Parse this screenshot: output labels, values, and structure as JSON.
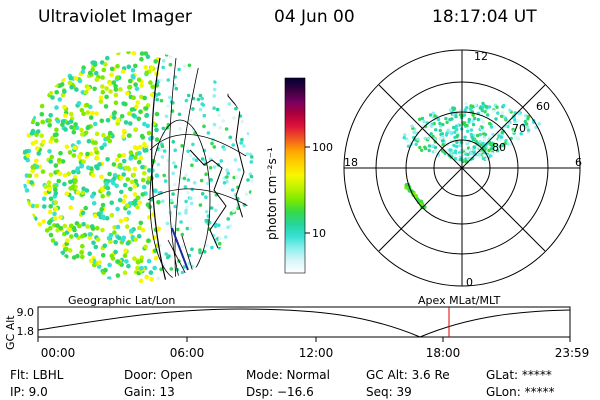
{
  "header": {
    "title": "Ultraviolet Imager",
    "date": "04 Jun 00",
    "time": "18:17:04 UT"
  },
  "colorbar": {
    "unit": "photon cm⁻²s⁻¹",
    "ticks": [
      "100",
      "10"
    ],
    "colors": [
      "#000033",
      "#3a0040",
      "#7a0060",
      "#b0003a",
      "#e0143a",
      "#f05a20",
      "#ffa500",
      "#ffd200",
      "#f7f700",
      "#bff300",
      "#7bea00",
      "#35d94a",
      "#26d59a",
      "#38e0d4",
      "#8ff0ef",
      "#d8f6f8",
      "#ffffff"
    ]
  },
  "polar_plot": {
    "mlt_labels": [
      "12",
      "18",
      "6",
      "0"
    ],
    "lat_labels": [
      "60",
      "70",
      "80"
    ]
  },
  "timeline": {
    "y_axis_label": "GC Alt",
    "y_ticks": [
      "9.0",
      "1.8"
    ],
    "left_title": "Geographic Lat/Lon",
    "right_title": "Apex MLat/MLT",
    "x_ticks": [
      "00:00",
      "06:00",
      "12:00",
      "18:00",
      "23:59"
    ],
    "current_marker_color": "#e00000"
  },
  "status": {
    "filter": "Flt: LBHL",
    "ip": "IP:  9.0",
    "door": "Door: Open",
    "gain": "Gain: 13",
    "mode": "Mode: Normal",
    "dsp": "Dsp:  −16.6",
    "gc_alt": "GC Alt: 3.6 Re",
    "seq": "Seq: 39",
    "glat": "GLat: *****",
    "glon": "GLon: *****"
  }
}
